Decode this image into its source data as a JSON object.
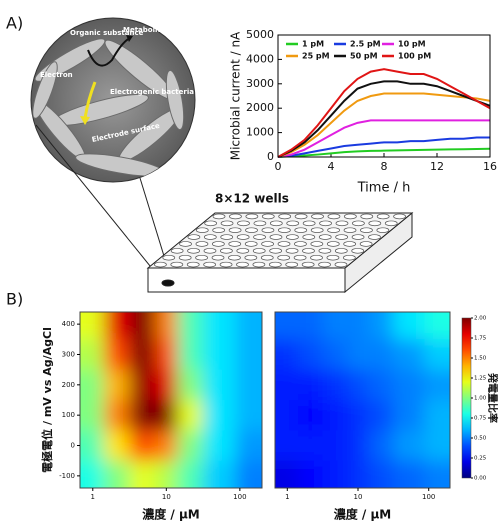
{
  "labels": {
    "panel_a": "A)",
    "panel_b": "B)",
    "wells": "8×12 wells"
  },
  "micrograph": {
    "organic": "Organic substance",
    "metabolites": "Metabolites",
    "electron": "Electron",
    "bacteria": "Electrogenic bacteria",
    "electrode": "Electrode surface"
  },
  "chart_data": [
    {
      "type": "line",
      "xlabel": "Time / h",
      "ylabel": "Microbial current / nA",
      "x": [
        0,
        1,
        2,
        3,
        4,
        5,
        6,
        7,
        8,
        9,
        10,
        11,
        12,
        13,
        14,
        15,
        16
      ],
      "xlim": [
        0,
        16
      ],
      "xticks": [
        0,
        4,
        8,
        12,
        16
      ],
      "ylim": [
        0,
        5000
      ],
      "yticks": [
        0,
        1000,
        2000,
        3000,
        4000,
        5000
      ],
      "series": [
        {
          "name": "1 pM",
          "color": "#22cc22",
          "values": [
            0,
            30,
            60,
            100,
            150,
            200,
            230,
            250,
            260,
            270,
            280,
            290,
            300,
            310,
            320,
            330,
            340
          ]
        },
        {
          "name": "2.5 pM",
          "color": "#1a3be0",
          "values": [
            0,
            50,
            150,
            250,
            350,
            450,
            500,
            550,
            600,
            600,
            650,
            650,
            700,
            750,
            750,
            800,
            800
          ]
        },
        {
          "name": "10 pM",
          "color": "#e020e0",
          "values": [
            0,
            100,
            300,
            600,
            900,
            1200,
            1400,
            1500,
            1500,
            1500,
            1500,
            1500,
            1500,
            1500,
            1500,
            1500,
            1500
          ]
        },
        {
          "name": "25 pM",
          "color": "#f09a10",
          "values": [
            0,
            200,
            500,
            900,
            1400,
            1900,
            2300,
            2500,
            2600,
            2600,
            2600,
            2600,
            2550,
            2500,
            2450,
            2400,
            2300
          ]
        },
        {
          "name": "50 pM",
          "color": "#111111",
          "values": [
            0,
            250,
            600,
            1100,
            1700,
            2300,
            2800,
            3000,
            3100,
            3100,
            3000,
            3000,
            2900,
            2700,
            2500,
            2300,
            2100
          ]
        },
        {
          "name": "100 pM",
          "color": "#e01515",
          "values": [
            0,
            300,
            700,
            1300,
            2000,
            2700,
            3200,
            3500,
            3600,
            3500,
            3400,
            3400,
            3200,
            2900,
            2600,
            2300,
            2000
          ]
        }
      ]
    },
    {
      "type": "heatmap",
      "xlabel": "濃度 / μM",
      "ylabel": "電極電位 / mV vs Ag/AgCl",
      "log_x": true,
      "x": [
        1,
        2,
        5,
        10,
        20,
        50,
        150
      ],
      "y": [
        400,
        300,
        200,
        100,
        0,
        -100
      ],
      "xlim": [
        0.67,
        200
      ],
      "xticks": [
        1,
        10,
        100
      ],
      "ylim": [
        -140,
        440
      ],
      "yticks": [
        -100,
        0,
        100,
        200,
        300,
        400
      ],
      "zlim": [
        0,
        2
      ],
      "z": [
        [
          1.2,
          1.8,
          2.0,
          1.5,
          0.9,
          0.7,
          0.6
        ],
        [
          1.1,
          1.6,
          2.0,
          1.6,
          0.9,
          0.7,
          0.6
        ],
        [
          1.0,
          1.4,
          1.95,
          1.8,
          1.0,
          0.7,
          0.6
        ],
        [
          1.0,
          1.5,
          2.0,
          2.0,
          1.2,
          0.7,
          0.6
        ],
        [
          0.9,
          1.3,
          1.6,
          1.5,
          1.0,
          0.7,
          0.55
        ],
        [
          0.8,
          1.0,
          1.2,
          1.1,
          0.9,
          0.65,
          0.5
        ]
      ]
    },
    {
      "type": "heatmap",
      "xlabel": "濃度 / μM",
      "log_x": true,
      "x": [
        1,
        2,
        5,
        10,
        20,
        50,
        150
      ],
      "y": [
        400,
        300,
        200,
        100,
        0,
        -100
      ],
      "xlim": [
        0.67,
        200
      ],
      "xticks": [
        1,
        10,
        100
      ],
      "ylim": [
        -140,
        440
      ],
      "zlim": [
        0,
        2
      ],
      "colorbar_label": "発電量比率",
      "zticks": [
        {
          "value": 0,
          "label": "0.00"
        },
        {
          "value": 0.25,
          "label": "0.25"
        },
        {
          "value": 0.5,
          "label": "0.50"
        },
        {
          "value": 0.75,
          "label": "0.75"
        },
        {
          "value": 1,
          "label": "1.00"
        },
        {
          "value": 1.25,
          "label": "1.25"
        },
        {
          "value": 1.5,
          "label": "1.50"
        },
        {
          "value": 1.75,
          "label": "1.75"
        },
        {
          "value": 2,
          "label": "2.00"
        }
      ],
      "z": [
        [
          0.45,
          0.45,
          0.5,
          0.5,
          0.55,
          0.7,
          0.8
        ],
        [
          0.35,
          0.4,
          0.45,
          0.5,
          0.5,
          0.55,
          0.65
        ],
        [
          0.3,
          0.3,
          0.35,
          0.4,
          0.45,
          0.5,
          0.55
        ],
        [
          0.3,
          0.25,
          0.3,
          0.35,
          0.4,
          0.5,
          0.6
        ],
        [
          0.3,
          0.3,
          0.3,
          0.35,
          0.45,
          0.55,
          0.6
        ],
        [
          0.2,
          0.25,
          0.3,
          0.35,
          0.4,
          0.45,
          0.5
        ]
      ]
    }
  ]
}
